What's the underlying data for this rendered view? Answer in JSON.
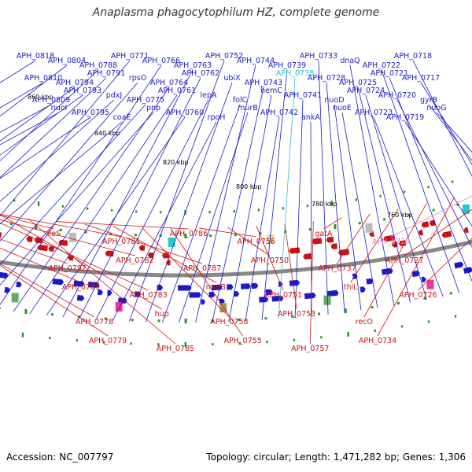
{
  "title": "Anaplasma phagocytophilum HZ, complete genome",
  "accession_text": "Accession: NC_007797",
  "summary_text": "Topology: circular; Length: 1,471,282 bp; Genes: 1,306",
  "colors": {
    "plus_strand": "#1a1acc",
    "minus_strand": "#cc1111",
    "highlight_plus": "#33bbdd",
    "highlight_minus": "#e080c0",
    "backbone": "#888888",
    "tick": "#229922"
  },
  "scale_labels": [
    "860 kbp",
    "840 kbp",
    "820 kbp",
    "800 kbp",
    "780 kbp",
    "760 kbp"
  ],
  "plus_genes": [
    "APH_0818",
    "APH_0810",
    "APH_0809",
    "nuoI",
    "APH_0804",
    "APH_0794",
    "APH_0793",
    "APH_0795",
    "APH_0788",
    "APH_0791",
    "pdxJ",
    "coaE",
    "APH_0771",
    "rpsO",
    "APH_0775",
    "pnp",
    "APH_0766",
    "APH_0764",
    "APH_0761",
    "APH_0760",
    "APH_0763",
    "APH_0762",
    "lepA",
    "rpoH",
    "APH_0752",
    "ubiX",
    "folC",
    "murB",
    "APH_0744",
    "APH_0743",
    "hemC",
    "APH_0742",
    "APH_0739",
    "APH_0738",
    "APH_0741",
    "ankA",
    "APH_0733",
    "APH_0728",
    "nuoD",
    "nuoE",
    "dnaQ",
    "APH_0725",
    "APH_0724",
    "APH_0723",
    "APH_0722",
    "APH_0721",
    "APH_0720",
    "APH_0719",
    "APH_0718",
    "APH_0717",
    "gyrB",
    "nuoG"
  ],
  "minus_genes": [
    "ileS",
    "APH_0792",
    "APH_0789",
    "APH_0778",
    "APH_0779",
    "APH_0781",
    "APH_0782",
    "APH_0783",
    "hup",
    "APH_0785",
    "APH_0786",
    "APH_0787",
    "mreB",
    "APH_0758",
    "APH_0755",
    "APH_0756",
    "APH_0750",
    "APH_0751",
    "APH_0753",
    "APH_0757",
    "gatA",
    "APH_0737",
    "thiL",
    "recO",
    "APH_0734",
    "APH_0729",
    "APH_0727",
    "APH_0726"
  ]
}
